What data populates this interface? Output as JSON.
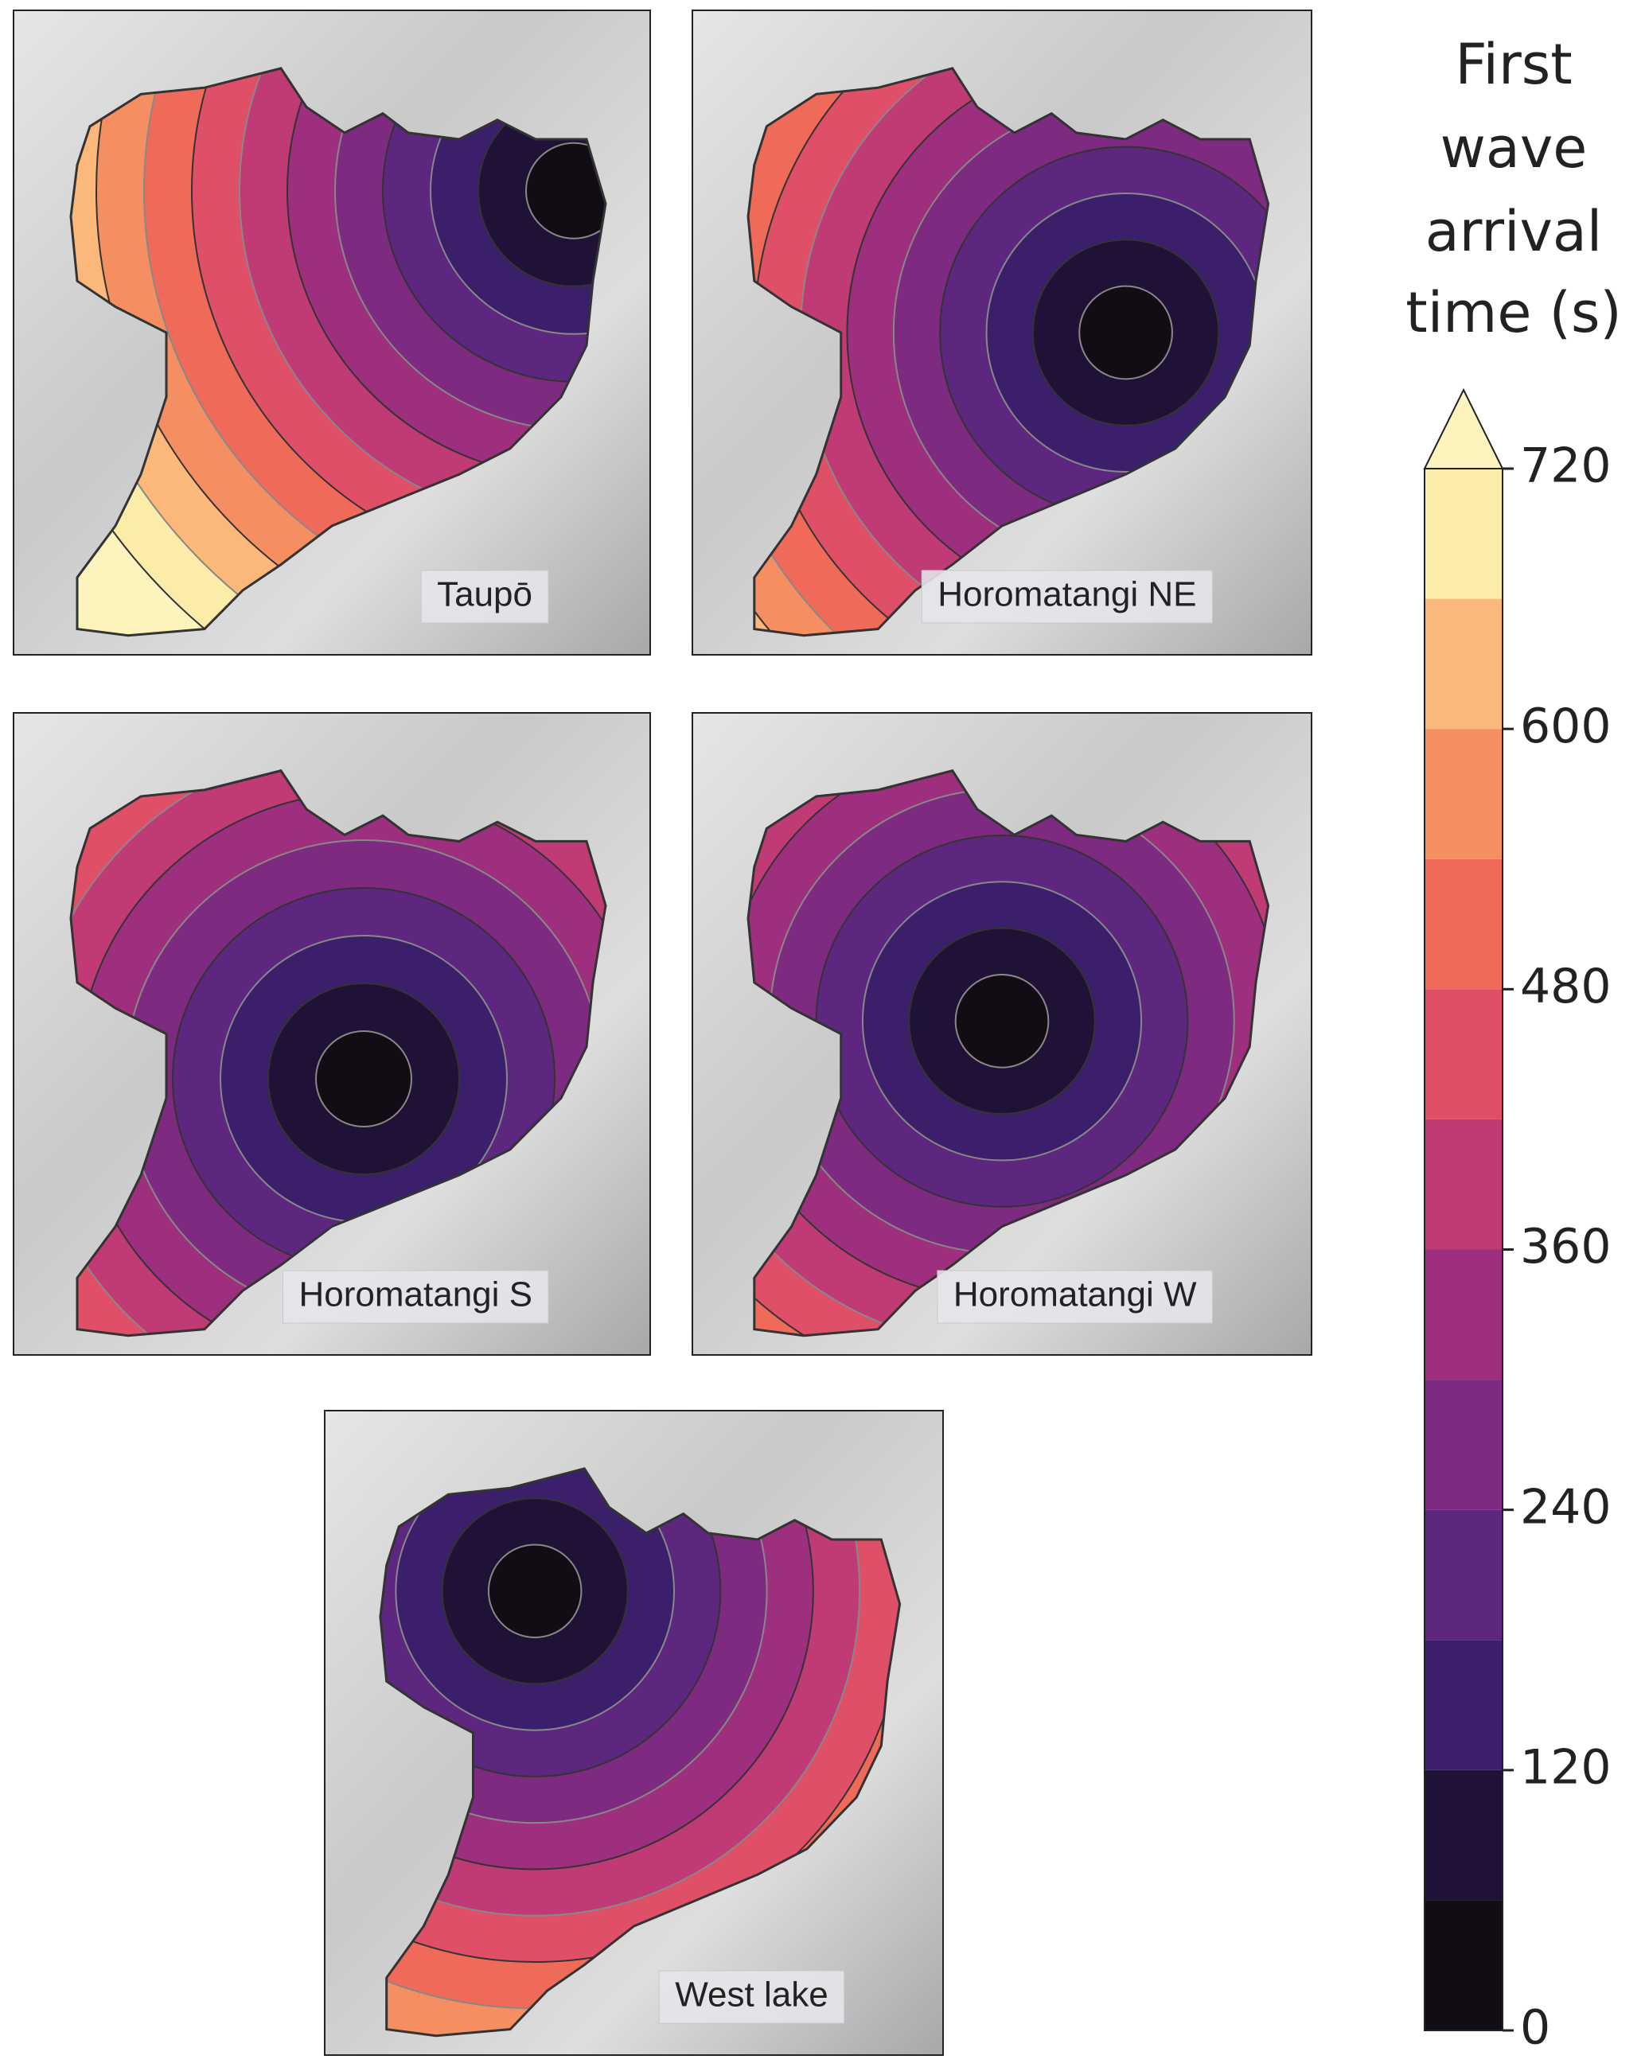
{
  "panels": [
    {
      "label": "Taupō"
    },
    {
      "label": "Horomatangi NE"
    },
    {
      "label": "Horomatangi S"
    },
    {
      "label": "Horomatangi W"
    },
    {
      "label": "West lake"
    }
  ],
  "colorbar": {
    "title_lines": [
      "First",
      "wave",
      "arrival",
      "time (s)"
    ],
    "lim": [
      0,
      720
    ],
    "ticks": [
      0,
      120,
      240,
      360,
      480,
      600,
      720
    ],
    "levels": [
      0,
      60,
      120,
      180,
      240,
      300,
      360,
      420,
      480,
      540,
      600,
      660,
      720
    ],
    "colors": [
      "#120d14",
      "#1f1236",
      "#3b1f6b",
      "#5d277f",
      "#7e2a80",
      "#9e2f7e",
      "#c03a76",
      "#e04f68",
      "#f06a5a",
      "#f58e61",
      "#fbb87a",
      "#fcecaa"
    ],
    "extend_color": "#fcf4bc"
  }
}
